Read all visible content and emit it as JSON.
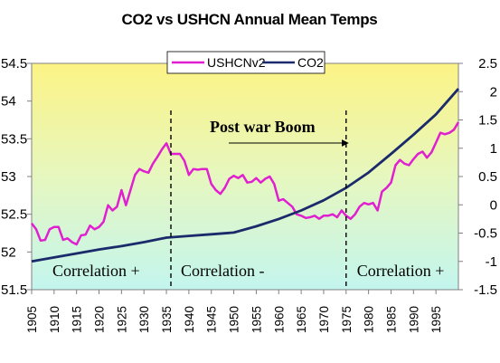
{
  "chart_data": {
    "type": "line",
    "title": "CO2 vs USHCN Annual Mean Temps",
    "x_ticks": [
      "1905",
      "1910",
      "1915",
      "1920",
      "1925",
      "1930",
      "1935",
      "1940",
      "1945",
      "1950",
      "1955",
      "1960",
      "1965",
      "1970",
      "1975",
      "1980",
      "1985",
      "1990",
      "1995"
    ],
    "xlim": [
      1905,
      2000
    ],
    "y_left": {
      "ticks": [
        "51.5",
        "52",
        "52.5",
        "53",
        "53.5",
        "54",
        "54.5"
      ],
      "lim": [
        51.5,
        54.5
      ]
    },
    "y_right": {
      "ticks": [
        "-1.5",
        "-1",
        "-0.5",
        "0",
        "0.5",
        "1",
        "1.5",
        "2",
        "2.5"
      ],
      "lim": [
        -1.5,
        2.5
      ]
    },
    "legend": {
      "position": "top-center"
    },
    "grid": false,
    "series": [
      {
        "name": "USHCNv2",
        "axis": "left",
        "color": "#e020d0",
        "x": [
          1905,
          1906,
          1907,
          1908,
          1909,
          1910,
          1911,
          1912,
          1913,
          1914,
          1915,
          1916,
          1917,
          1918,
          1919,
          1920,
          1921,
          1922,
          1923,
          1924,
          1925,
          1926,
          1927,
          1928,
          1929,
          1930,
          1931,
          1932,
          1933,
          1934,
          1935,
          1936,
          1937,
          1938,
          1939,
          1940,
          1941,
          1942,
          1943,
          1944,
          1945,
          1946,
          1947,
          1948,
          1949,
          1950,
          1951,
          1952,
          1953,
          1954,
          1955,
          1956,
          1957,
          1958,
          1959,
          1960,
          1961,
          1962,
          1963,
          1964,
          1965,
          1966,
          1967,
          1968,
          1969,
          1970,
          1971,
          1972,
          1973,
          1974,
          1975,
          1976,
          1977,
          1978,
          1979,
          1980,
          1981,
          1982,
          1983,
          1984,
          1985,
          1986,
          1987,
          1988,
          1989,
          1990,
          1991,
          1992,
          1993,
          1994,
          1995,
          1996,
          1997,
          1998,
          1999,
          2000
        ],
        "y": [
          52.38,
          52.3,
          52.15,
          52.16,
          52.3,
          52.33,
          52.33,
          52.16,
          52.18,
          52.13,
          52.1,
          52.22,
          52.23,
          52.35,
          52.3,
          52.33,
          52.4,
          52.62,
          52.55,
          52.6,
          52.82,
          52.62,
          52.82,
          53.02,
          53.1,
          53.07,
          53.05,
          53.17,
          53.26,
          53.36,
          53.44,
          53.3,
          53.3,
          53.3,
          53.21,
          53.02,
          53.1,
          53.09,
          53.1,
          53.1,
          52.9,
          52.82,
          52.77,
          52.85,
          52.97,
          53.01,
          52.98,
          53.02,
          52.92,
          52.93,
          52.98,
          52.92,
          52.97,
          53.0,
          52.9,
          52.68,
          52.7,
          52.65,
          52.6,
          52.5,
          52.48,
          52.45,
          52.46,
          52.48,
          52.44,
          52.48,
          52.48,
          52.5,
          52.46,
          52.55,
          52.48,
          52.44,
          52.5,
          52.6,
          52.65,
          52.63,
          52.65,
          52.55,
          52.8,
          52.85,
          52.92,
          53.15,
          53.22,
          53.17,
          53.15,
          53.23,
          53.3,
          53.33,
          53.25,
          53.32,
          53.45,
          53.58,
          53.56,
          53.58,
          53.62,
          53.72
        ]
      },
      {
        "name": "CO2",
        "axis": "right",
        "color": "#1a2a6b",
        "x": [
          1905,
          1910,
          1915,
          1920,
          1925,
          1930,
          1935,
          1940,
          1945,
          1950,
          1955,
          1960,
          1965,
          1970,
          1975,
          1980,
          1985,
          1990,
          1995,
          2000
        ],
        "y": [
          -1.0,
          -0.93,
          -0.86,
          -0.79,
          -0.73,
          -0.66,
          -0.58,
          -0.55,
          -0.52,
          -0.49,
          -0.38,
          -0.25,
          -0.1,
          0.08,
          0.3,
          0.57,
          0.9,
          1.24,
          1.6,
          2.05
        ]
      }
    ],
    "annotations": {
      "boom_text": "Post war Boom",
      "segments": [
        "Correlation +",
        "Correlation -",
        "Correlation +"
      ],
      "boundaries": [
        1936,
        1975
      ]
    }
  }
}
